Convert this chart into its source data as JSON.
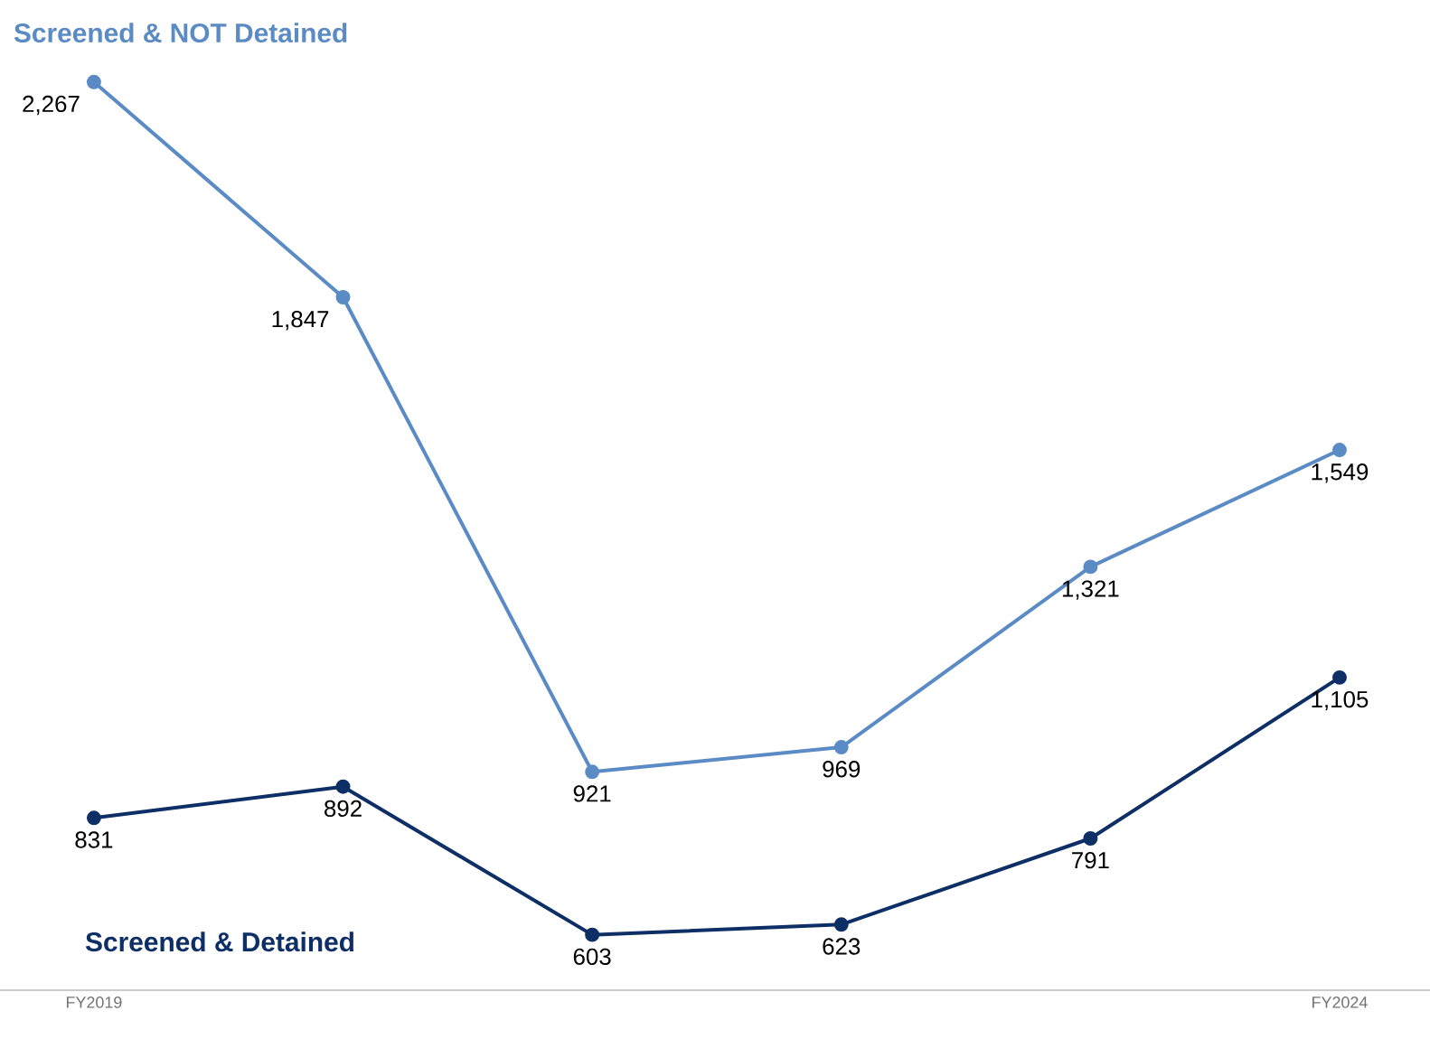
{
  "chart_data": {
    "type": "line",
    "categories": [
      "FY2019",
      null,
      null,
      null,
      null,
      "FY2024"
    ],
    "series": [
      {
        "name": "Screened & NOT Detained",
        "color": "#5b8bc5",
        "values": [
          2267,
          1847,
          921,
          969,
          1321,
          1549
        ],
        "value_labels": [
          "2,267",
          "1,847",
          "921",
          "969",
          "1,321",
          "1,549"
        ]
      },
      {
        "name": "Screened & Detained",
        "color": "#0e2f66",
        "values": [
          831,
          892,
          603,
          623,
          791,
          1105
        ],
        "value_labels": [
          "831",
          "892",
          "603",
          "623",
          "791",
          "1,105"
        ]
      }
    ],
    "marker": "circle",
    "line_style": "solid",
    "legend": false,
    "grid": false
  }
}
